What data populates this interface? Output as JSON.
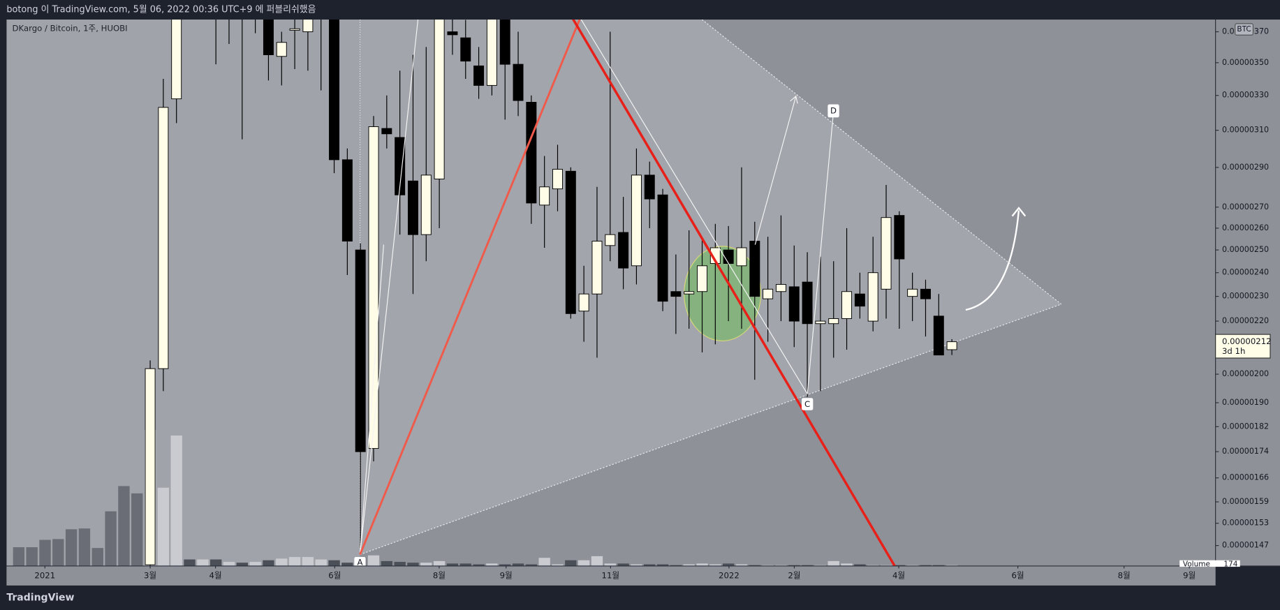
{
  "header": {
    "text": "botong 이 TradingView.com, 5월 06, 2022 00:36 UTC+9 에 퍼블리쉬했음"
  },
  "footer": {
    "brand": "TradingView"
  },
  "chart_data": {
    "type": "candlestick",
    "legend_text": "DKargo / Bitcoin, 1주, HUOBI",
    "currency_badge": "BTC",
    "log_scale": true,
    "grid": false,
    "up_color": "#fffde7",
    "down_color": "#000000",
    "open": [
      null,
      null,
      null,
      null,
      null,
      null,
      null,
      null,
      null,
      null,
      1.42e-06,
      2.02e-06,
      3.28e-06,
      4.2e-06,
      4.1e-06,
      4.2e-06,
      4e-06,
      4.1e-06,
      3.95e-06,
      4e-06,
      3.54e-06,
      3.71e-06,
      3.7e-06,
      3.9e-06,
      3.85e-06,
      2.94e-06,
      2.5e-06,
      1.75e-06,
      3.11e-06,
      3.06e-06,
      2.83e-06,
      2.57e-06,
      2.84e-06,
      3.7e-06,
      3.66e-06,
      3.48e-06,
      3.36e-06,
      3.85e-06,
      3.49e-06,
      3.26e-06,
      2.71e-06,
      2.79e-06,
      2.88e-06,
      2.24e-06,
      2.31e-06,
      2.52e-06,
      2.58e-06,
      2.43e-06,
      2.86e-06,
      2.76e-06,
      2.32e-06,
      2.31e-06,
      2.32e-06,
      2.44e-06,
      2.5e-06,
      2.43e-06,
      2.54e-06,
      2.29e-06,
      2.32e-06,
      2.34e-06,
      2.36e-06,
      2.19e-06,
      2.19e-06,
      2.21e-06,
      2.31e-06,
      2.2e-06,
      2.33e-06,
      2.66e-06,
      2.3e-06,
      2.33e-06,
      2.22e-06,
      2.09e-06
    ],
    "high": [
      null,
      null,
      null,
      null,
      null,
      null,
      null,
      null,
      null,
      null,
      2.05e-06,
      3.4e-06,
      4.1e-06,
      4.4e-06,
      4.4e-06,
      4.3e-06,
      4.2e-06,
      4.2e-06,
      4.1e-06,
      4.1e-06,
      3.7e-06,
      3.8e-06,
      3.95e-06,
      4.1e-06,
      4e-06,
      3e-06,
      2.53e-06,
      3.18e-06,
      3.3e-06,
      3.45e-06,
      3.55e-06,
      3.6e-06,
      4e-06,
      3.8e-06,
      3.78e-06,
      3.6e-06,
      3.95e-06,
      3.95e-06,
      3.7e-06,
      3.3e-06,
      2.96e-06,
      3.02e-06,
      2.9e-06,
      2.43e-06,
      2.8e-06,
      3.7e-06,
      2.75e-06,
      3e-06,
      2.93e-06,
      2.79e-06,
      2.48e-06,
      2.59e-06,
      2.55e-06,
      2.62e-06,
      2.61e-06,
      2.9e-06,
      2.63e-06,
      2.56e-06,
      2.66e-06,
      2.52e-06,
      2.49e-06,
      2.47e-06,
      2.45e-06,
      2.6e-06,
      2.4e-06,
      2.56e-06,
      2.81e-06,
      2.68e-06,
      2.4e-06,
      2.37e-06,
      2.31e-06,
      2.13e-06
    ],
    "low": [
      null,
      null,
      null,
      null,
      null,
      null,
      null,
      null,
      null,
      null,
      1.41e-06,
      1.94e-06,
      3.14e-06,
      3.9e-06,
      3.95e-06,
      3.49e-06,
      3.62e-06,
      3.05e-06,
      3.69e-06,
      3.39e-06,
      3.36e-06,
      3.46e-06,
      3.45e-06,
      3.33e-06,
      2.87e-06,
      2.39e-06,
      1.45e-06,
      1.71e-06,
      3e-06,
      2.57e-06,
      2.31e-06,
      2.45e-06,
      2.6e-06,
      3.55e-06,
      3.4e-06,
      3.28e-06,
      3.3e-06,
      3.16e-06,
      3.18e-06,
      2.62e-06,
      2.51e-06,
      2.68e-06,
      2.21e-06,
      2.12e-06,
      2.06e-06,
      2.45e-06,
      2.33e-06,
      2.35e-06,
      2.6e-06,
      2.24e-06,
      2.15e-06,
      2.17e-06,
      2.08e-06,
      2.11e-06,
      2.2e-06,
      2.17e-06,
      1.98e-06,
      2.12e-06,
      2.2e-06,
      2.1e-06,
      1.92e-06,
      1.94e-06,
      2.06e-06,
      2.09e-06,
      2.21e-06,
      2.16e-06,
      2.21e-06,
      2.17e-06,
      2.2e-06,
      2.14e-06,
      2.07e-06,
      2.07e-06
    ],
    "close": [
      null,
      null,
      null,
      null,
      null,
      null,
      null,
      null,
      null,
      null,
      2.02e-06,
      3.23e-06,
      4e-06,
      4e-06,
      4.3e-06,
      4e-06,
      4.1e-06,
      3.95e-06,
      4e-06,
      3.55e-06,
      3.63e-06,
      3.72e-06,
      3.8e-06,
      4e-06,
      2.94e-06,
      2.54e-06,
      1.74e-06,
      3.12e-06,
      3.08e-06,
      2.76e-06,
      2.57e-06,
      2.86e-06,
      3.8e-06,
      3.68e-06,
      3.51e-06,
      3.36e-06,
      3.85e-06,
      3.49e-06,
      3.27e-06,
      2.72e-06,
      2.8e-06,
      2.89e-06,
      2.23e-06,
      2.31e-06,
      2.54e-06,
      2.57e-06,
      2.42e-06,
      2.86e-06,
      2.74e-06,
      2.28e-06,
      2.3e-06,
      2.32e-06,
      2.43e-06,
      2.51e-06,
      2.44e-06,
      2.51e-06,
      2.3e-06,
      2.33e-06,
      2.35e-06,
      2.2e-06,
      2.19e-06,
      2.2e-06,
      2.21e-06,
      2.32e-06,
      2.26e-06,
      2.4e-06,
      2.65e-06,
      2.46e-06,
      2.33e-06,
      2.29e-06,
      2.07e-06,
      2.12e-06
    ],
    "volume": [
      4000,
      4000,
      5570,
      5740,
      7830,
      8000,
      3830,
      11660,
      17050,
      15490,
      29060,
      16700,
      27840,
      1390,
      1390,
      1390,
      870,
      700,
      870,
      1220,
      1570,
      1910,
      1910,
      1390,
      1220,
      700,
      1740,
      2260,
      1040,
      870,
      700,
      700,
      1040,
      520,
      520,
      350,
      520,
      350,
      520,
      350,
      1740,
      350,
      1220,
      1220,
      2090,
      520,
      520,
      350,
      350,
      350,
      174,
      350,
      520,
      350,
      520,
      350,
      174,
      174,
      174,
      174,
      174,
      174,
      1040,
      520,
      350,
      174,
      174,
      174,
      174,
      174,
      174,
      174
    ],
    "volume_label": "Volume",
    "last_price": {
      "value": 2.12e-06,
      "label": "0.00000212"
    },
    "countdown": "3d 1h",
    "ylim": [
      1.417e-06,
      3.782e-06
    ],
    "yticks": [
      {
        "value": 3.7e-06,
        "label": "0.00000370"
      },
      {
        "value": 3.5e-06,
        "label": "0.00000350"
      },
      {
        "value": 3.3e-06,
        "label": "0.00000330"
      },
      {
        "value": 3.1e-06,
        "label": "0.00000310"
      },
      {
        "value": 2.9e-06,
        "label": "0.00000290"
      },
      {
        "value": 2.7e-06,
        "label": "0.00000270"
      },
      {
        "value": 2.6e-06,
        "label": "0.00000260"
      },
      {
        "value": 2.5e-06,
        "label": "0.00000250"
      },
      {
        "value": 2.4e-06,
        "label": "0.00000240"
      },
      {
        "value": 2.3e-06,
        "label": "0.00000230"
      },
      {
        "value": 2.2e-06,
        "label": "0.00000220"
      },
      {
        "value": 2e-06,
        "label": "0.00000200"
      },
      {
        "value": 1.9e-06,
        "label": "0.00000190"
      },
      {
        "value": 1.82e-06,
        "label": "0.00000182"
      },
      {
        "value": 1.74e-06,
        "label": "0.00000174"
      },
      {
        "value": 1.66e-06,
        "label": "0.00000166"
      },
      {
        "value": 1.59e-06,
        "label": "0.00000159"
      },
      {
        "value": 1.53e-06,
        "label": "0.00000153"
      },
      {
        "value": 1.47e-06,
        "label": "0.00000147"
      }
    ],
    "xlim": [
      -0.93,
      91.06
    ],
    "xticks": [
      {
        "value": 1.99,
        "label": "2021"
      },
      {
        "value": 10,
        "label": "3월"
      },
      {
        "value": 14.97,
        "label": "4월"
      },
      {
        "value": 24.04,
        "label": "6월"
      },
      {
        "value": 31.99,
        "label": "8월"
      },
      {
        "value": 37.08,
        "label": "9월"
      },
      {
        "value": 45.03,
        "label": "11월"
      },
      {
        "value": 54.04,
        "label": "2022"
      },
      {
        "value": 59.01,
        "label": "2월"
      },
      {
        "value": 66.96,
        "label": "4월"
      },
      {
        "value": 76.02,
        "label": "6월"
      },
      {
        "value": 84.1,
        "label": "8월"
      },
      {
        "value": 89.07,
        "label": "9월"
      }
    ],
    "drawing_labels": [
      "A",
      "C",
      "D"
    ]
  }
}
